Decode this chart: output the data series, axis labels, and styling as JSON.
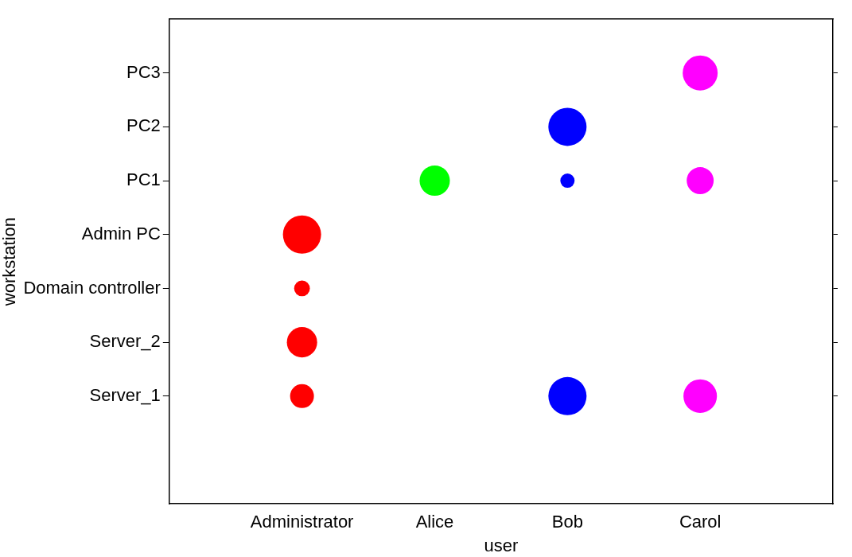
{
  "chart_data": {
    "type": "bubble",
    "xlabel": "user",
    "ylabel": "workstation",
    "categories": [
      null,
      "Administrator",
      "Alice",
      "Bob",
      "Carol",
      null
    ],
    "ylim": [
      -1,
      8
    ],
    "yticks": [
      {
        "value": 1,
        "label": "Server_1"
      },
      {
        "value": 2,
        "label": "Server_2"
      },
      {
        "value": 3,
        "label": "Domain controller"
      },
      {
        "value": 4,
        "label": "Admin PC"
      },
      {
        "value": 5,
        "label": "PC1"
      },
      {
        "value": 6,
        "label": "PC2"
      },
      {
        "value": 7,
        "label": "PC3"
      }
    ],
    "series": [
      {
        "color": "#ff0000",
        "x": [
          "Administrator",
          "Administrator",
          "Administrator",
          "Administrator"
        ],
        "values": [
          1,
          2,
          3,
          4
        ],
        "sizes": [
          0.39,
          0.63,
          0.17,
          1
        ]
      },
      {
        "color": "#00ff00",
        "x": [
          "Alice"
        ],
        "values": [
          5
        ],
        "sizes": [
          0.63
        ]
      },
      {
        "color": "#0000ff",
        "x": [
          "Bob",
          "Bob",
          "Bob"
        ],
        "values": [
          1,
          5,
          6
        ],
        "sizes": [
          1,
          0.14,
          1
        ]
      },
      {
        "color": "#ff00ff",
        "x": [
          "Carol",
          "Carol",
          "Carol"
        ],
        "values": [
          1,
          5,
          7
        ],
        "sizes": [
          0.77,
          0.5,
          0.84
        ]
      }
    ],
    "grid": false,
    "legend": false
  }
}
